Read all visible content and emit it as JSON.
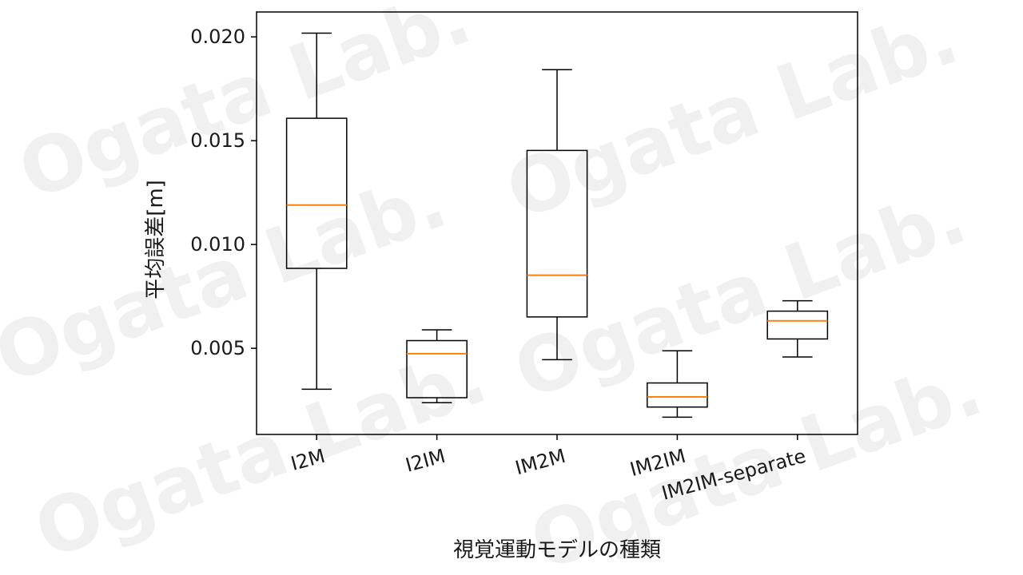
{
  "chart_data": {
    "type": "boxplot",
    "categories": [
      "I2M",
      "I2IM",
      "IM2M",
      "IM2IM",
      "IM2IM-separate"
    ],
    "boxes": [
      {
        "whisker_low": 0.00303,
        "q1": 0.00885,
        "median": 0.0119,
        "q3": 0.01608,
        "whisker_high": 0.02018
      },
      {
        "whisker_low": 0.00238,
        "q1": 0.00262,
        "median": 0.00474,
        "q3": 0.00537,
        "whisker_high": 0.00589
      },
      {
        "whisker_low": 0.00445,
        "q1": 0.00651,
        "median": 0.00852,
        "q3": 0.01453,
        "whisker_high": 0.01842
      },
      {
        "whisker_low": 0.00168,
        "q1": 0.00217,
        "median": 0.00266,
        "q3": 0.00333,
        "whisker_high": 0.00488
      },
      {
        "whisker_low": 0.00458,
        "q1": 0.00545,
        "median": 0.00632,
        "q3": 0.00679,
        "whisker_high": 0.00729
      }
    ],
    "ylabel": "平均誤差[m]",
    "xlabel": "視覚運動モデルの種類",
    "yticks": [
      "0.005",
      "0.010",
      "0.015",
      "0.020"
    ],
    "ylim": [
      0.00085,
      0.0212
    ],
    "grid": false,
    "box_color": "#000000",
    "median_color": "#ff7f0e"
  },
  "watermark_text": "Ogata Lab."
}
